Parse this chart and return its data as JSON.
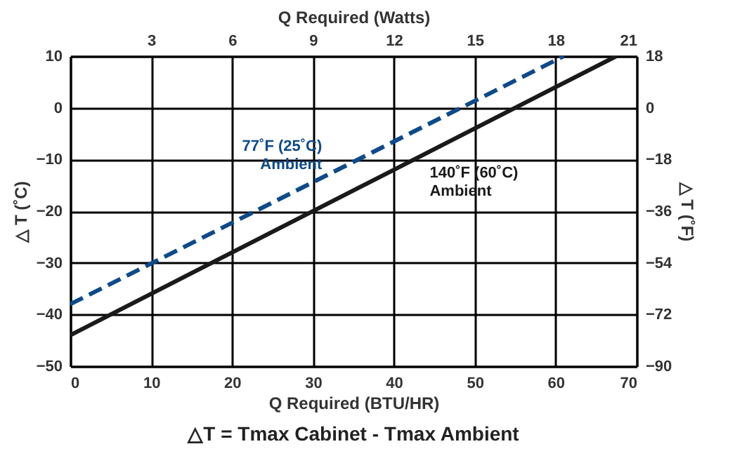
{
  "chart_data": {
    "type": "line",
    "xlabel": "Q Required (BTU/HR)",
    "ylabel": "△ T (˚C)",
    "y2label": "△ T (˚F)",
    "x2label": "Q Required (Watts)",
    "xlim": [
      0,
      70
    ],
    "xticks": [
      0,
      10,
      20,
      30,
      40,
      50,
      60,
      70
    ],
    "ylim": [
      -50,
      10
    ],
    "yticks": [
      -50,
      -40,
      -30,
      -20,
      -10,
      0,
      10
    ],
    "x2lim": [
      0,
      21
    ],
    "x2ticks": [
      3,
      6,
      9,
      12,
      15,
      18,
      21
    ],
    "y2lim": [
      -90,
      18
    ],
    "y2ticks": [
      -90,
      -72,
      -54,
      -36,
      -18,
      0,
      18
    ],
    "grid": true,
    "legend": false,
    "marker": "none",
    "series": [
      {
        "name": "77˚F (25˚C)\nAmbient",
        "color": "#0d4a8a",
        "line_style": "dashed",
        "x": [
          0,
          61
        ],
        "values": [
          -38,
          10
        ]
      },
      {
        "name": "140˚F (60˚C)\nAmbient",
        "color": "#1a1a1a",
        "line_style": "solid",
        "x": [
          0,
          67.5
        ],
        "values": [
          -44,
          10
        ]
      }
    ],
    "annotations": [
      "△T  =  Tmax Cabinet - Tmax Ambient"
    ]
  }
}
